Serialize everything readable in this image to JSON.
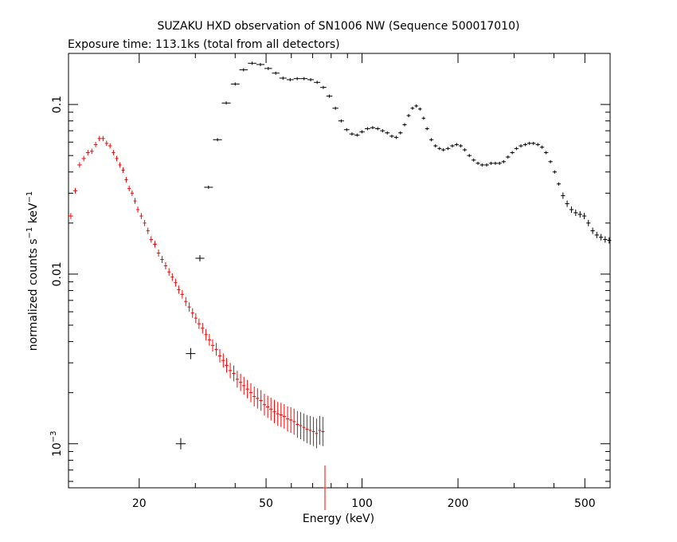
{
  "chart_data": {
    "type": "scatter",
    "title": "SUZAKU HXD observation of SN1006 NW (Sequence 500017010)",
    "subtitle": "Exposure time: 113.1ks (total from all detectors)",
    "xlabel": "Energy (keV)",
    "ylabel": "normalized counts s^-1 keV^-1",
    "xscale": "log",
    "yscale": "log",
    "xlim": [
      12,
      600
    ],
    "ylim": [
      0.00055,
      0.2
    ],
    "grid": false,
    "legend": "none",
    "x_ticks": [
      {
        "value": 20,
        "label": "20"
      },
      {
        "value": 50,
        "label": "50"
      },
      {
        "value": 100,
        "label": "100"
      },
      {
        "value": 200,
        "label": "200"
      },
      {
        "value": 500,
        "label": "500"
      }
    ],
    "y_ticks": [
      {
        "value": 0.001,
        "label": "10",
        "exponent": "−3"
      },
      {
        "value": 0.01,
        "label": "0.01"
      },
      {
        "value": 0.1,
        "label": "0.1"
      }
    ],
    "series": [
      {
        "color": "#ff0000",
        "points": [
          [
            12.2,
            0.022
          ],
          [
            12.6,
            0.031
          ],
          [
            13.0,
            0.044
          ],
          [
            13.4,
            0.048
          ],
          [
            13.8,
            0.052
          ],
          [
            14.2,
            0.053
          ],
          [
            14.6,
            0.058
          ],
          [
            15.0,
            0.063
          ],
          [
            15.4,
            0.063
          ],
          [
            15.8,
            0.059
          ],
          [
            16.2,
            0.057
          ],
          [
            16.6,
            0.052
          ],
          [
            17.0,
            0.048
          ],
          [
            17.4,
            0.044
          ],
          [
            17.8,
            0.041
          ],
          [
            18.2,
            0.036
          ],
          [
            18.6,
            0.032
          ],
          [
            19.0,
            0.03
          ],
          [
            19.4,
            0.027
          ],
          [
            19.8,
            0.024
          ],
          [
            20.3,
            0.022
          ],
          [
            20.8,
            0.02
          ],
          [
            21.3,
            0.018
          ],
          [
            21.8,
            0.016
          ],
          [
            22.4,
            0.015
          ],
          [
            23.0,
            0.0133
          ],
          [
            23.6,
            0.0122
          ],
          [
            24.2,
            0.0112
          ],
          [
            24.8,
            0.0103
          ],
          [
            25.4,
            0.0096
          ],
          [
            26.0,
            0.0089
          ],
          [
            26.6,
            0.0081
          ],
          [
            27.3,
            0.0076
          ],
          [
            28.0,
            0.0069
          ],
          [
            28.7,
            0.0064
          ],
          [
            29.4,
            0.0059
          ],
          [
            30.1,
            0.0055
          ],
          [
            30.8,
            0.0051
          ],
          [
            31.6,
            0.0048
          ],
          [
            32.4,
            0.0044
          ],
          [
            33.2,
            0.0041
          ],
          [
            34.0,
            0.0038
          ],
          [
            34.9,
            0.0036
          ],
          [
            35.8,
            0.0033
          ],
          [
            36.7,
            0.0031
          ],
          [
            37.6,
            0.0029
          ],
          [
            38.6,
            0.0027
          ],
          [
            39.6,
            0.0026
          ],
          [
            40.6,
            0.0024
          ],
          [
            41.6,
            0.0023
          ],
          [
            42.6,
            0.0022
          ],
          [
            43.7,
            0.0021
          ],
          [
            44.8,
            0.002
          ],
          [
            45.9,
            0.0019
          ],
          [
            47.0,
            0.00185
          ],
          [
            48.2,
            0.0018
          ],
          [
            49.4,
            0.0017
          ],
          [
            50.6,
            0.00165
          ],
          [
            51.8,
            0.0016
          ],
          [
            53.1,
            0.00155
          ],
          [
            54.4,
            0.0015
          ],
          [
            55.7,
            0.00148
          ],
          [
            57.0,
            0.00145
          ],
          [
            58.4,
            0.0014
          ],
          [
            59.8,
            0.00138
          ],
          [
            61.2,
            0.00135
          ],
          [
            62.7,
            0.0013
          ],
          [
            64.2,
            0.00128
          ],
          [
            65.7,
            0.00125
          ],
          [
            67.2,
            0.00122
          ],
          [
            68.8,
            0.0012
          ],
          [
            70.4,
            0.00118
          ],
          [
            72.0,
            0.00115
          ],
          [
            73.7,
            0.0012
          ],
          [
            75.4,
            0.00118
          ],
          [
            76.5,
            0.00055
          ]
        ]
      },
      {
        "color": "#000000",
        "points": [
          [
            27.0,
            0.001
          ],
          [
            29.0,
            0.0034
          ],
          [
            31.0,
            0.0124
          ],
          [
            33.0,
            0.0325
          ],
          [
            35.2,
            0.062
          ],
          [
            37.5,
            0.102
          ],
          [
            40.0,
            0.132
          ],
          [
            42.5,
            0.16
          ],
          [
            45.2,
            0.175
          ],
          [
            48.0,
            0.172
          ],
          [
            50.8,
            0.163
          ],
          [
            53.6,
            0.153
          ],
          [
            56.5,
            0.143
          ],
          [
            59.5,
            0.14
          ],
          [
            62.6,
            0.142
          ],
          [
            65.8,
            0.142
          ],
          [
            69.0,
            0.14
          ],
          [
            72.3,
            0.135
          ],
          [
            75.6,
            0.126
          ],
          [
            79.0,
            0.112
          ],
          [
            82.5,
            0.095
          ],
          [
            86.0,
            0.08
          ],
          [
            89.5,
            0.071
          ],
          [
            93.0,
            0.067
          ],
          [
            96.5,
            0.066
          ],
          [
            100,
            0.069
          ],
          [
            104,
            0.072
          ],
          [
            108,
            0.073
          ],
          [
            112,
            0.072
          ],
          [
            116,
            0.07
          ],
          [
            120,
            0.068
          ],
          [
            124,
            0.065
          ],
          [
            128,
            0.064
          ],
          [
            132,
            0.068
          ],
          [
            136,
            0.076
          ],
          [
            140,
            0.086
          ],
          [
            144,
            0.095
          ],
          [
            148,
            0.098
          ],
          [
            152,
            0.094
          ],
          [
            156,
            0.083
          ],
          [
            160,
            0.072
          ],
          [
            165,
            0.062
          ],
          [
            170,
            0.057
          ],
          [
            175,
            0.055
          ],
          [
            180,
            0.054
          ],
          [
            186,
            0.055
          ],
          [
            192,
            0.057
          ],
          [
            198,
            0.058
          ],
          [
            204,
            0.057
          ],
          [
            210,
            0.054
          ],
          [
            217,
            0.05
          ],
          [
            224,
            0.047
          ],
          [
            231,
            0.045
          ],
          [
            238,
            0.044
          ],
          [
            246,
            0.044
          ],
          [
            254,
            0.045
          ],
          [
            262,
            0.045
          ],
          [
            270,
            0.045
          ],
          [
            278,
            0.046
          ],
          [
            287,
            0.049
          ],
          [
            296,
            0.052
          ],
          [
            305,
            0.055
          ],
          [
            315,
            0.057
          ],
          [
            325,
            0.058
          ],
          [
            335,
            0.059
          ],
          [
            345,
            0.059
          ],
          [
            356,
            0.058
          ],
          [
            367,
            0.056
          ],
          [
            378,
            0.052
          ],
          [
            390,
            0.046
          ],
          [
            402,
            0.04
          ],
          [
            414,
            0.034
          ],
          [
            427,
            0.029
          ],
          [
            440,
            0.026
          ],
          [
            454,
            0.024
          ],
          [
            468,
            0.023
          ],
          [
            483,
            0.0225
          ],
          [
            498,
            0.022
          ],
          [
            513,
            0.02
          ],
          [
            529,
            0.018
          ],
          [
            545,
            0.017
          ],
          [
            562,
            0.0165
          ],
          [
            579,
            0.016
          ],
          [
            596,
            0.0158
          ]
        ]
      }
    ]
  }
}
